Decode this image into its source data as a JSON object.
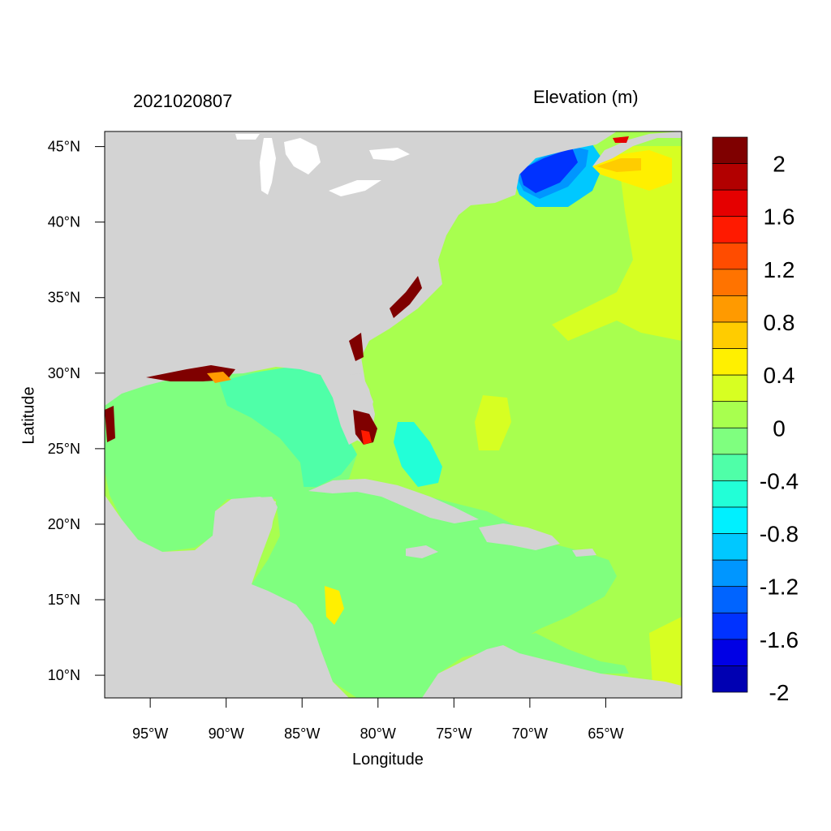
{
  "header": {
    "datetime": "2021020807",
    "variable_title": "Elevation (m)"
  },
  "axes": {
    "xlabel": "Longitude",
    "ylabel": "Latitude",
    "lon_range": [
      -98,
      -60
    ],
    "lat_range": [
      8.5,
      46
    ],
    "x_ticks": [
      "95°W",
      "90°W",
      "85°W",
      "80°W",
      "75°W",
      "70°W",
      "65°W"
    ],
    "y_ticks": [
      "45°N",
      "40°N",
      "35°N",
      "30°N",
      "25°N",
      "20°N",
      "15°N",
      "10°N"
    ]
  },
  "colorbar": {
    "labels": [
      "2",
      "1.6",
      "1.2",
      "0.8",
      "0.4",
      "0",
      "-0.4",
      "-0.8",
      "-1.2",
      "-1.6",
      "-2"
    ],
    "colors_top_to_bottom": [
      "#7f0000",
      "#b20000",
      "#e50000",
      "#ff1a00",
      "#ff4c00",
      "#ff7300",
      "#ff9a00",
      "#ffcc00",
      "#fff000",
      "#d7ff22",
      "#a8ff4f",
      "#7fff7f",
      "#4fffa8",
      "#22ffd7",
      "#00f0ff",
      "#00c8ff",
      "#0096ff",
      "#0064ff",
      "#0032ff",
      "#0000e5",
      "#0000b2"
    ]
  },
  "map_colors": {
    "land": "#d3d3d3",
    "water_edge": "#ffffff",
    "frame": "#000000"
  }
}
